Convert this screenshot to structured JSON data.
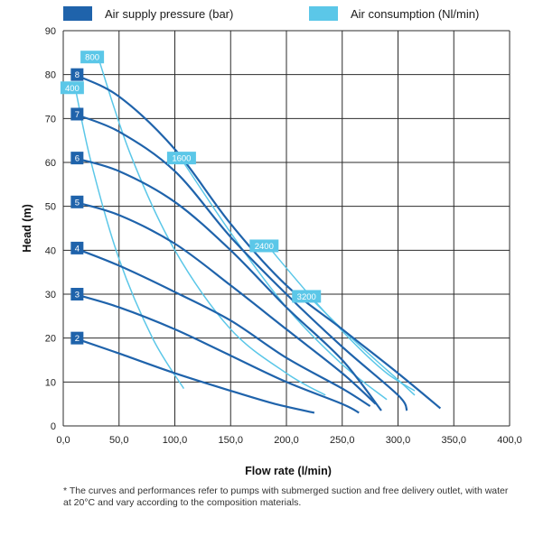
{
  "legend": {
    "pressure_label": "Air supply pressure (bar)",
    "consumption_label": "Air consumption (Nl/min)"
  },
  "colors": {
    "pressure": "#1f63ab",
    "consumption": "#5bc7e8",
    "grid": "#2b2b2b"
  },
  "footnote": "* The curves and performances refer to pumps with submerged suction and free delivery outlet, with water at 20°C and vary according to the composition materials.",
  "chart_data": {
    "type": "line",
    "xlabel": "Flow rate (l/min)",
    "ylabel": "Head (m)",
    "xlim": [
      0,
      400
    ],
    "ylim": [
      0,
      90
    ],
    "xticks": [
      "0,0",
      "50,0",
      "100,0",
      "150,0",
      "200,0",
      "250,0",
      "300,0",
      "350,0",
      "400,0"
    ],
    "yticks": [
      "0",
      "10",
      "20",
      "30",
      "40",
      "50",
      "60",
      "70",
      "80",
      "90"
    ],
    "grid": true,
    "legend_position": "top",
    "pressure_series": [
      {
        "name": "2",
        "points": [
          [
            10,
            20
          ],
          [
            50,
            16.5
          ],
          [
            100,
            12
          ],
          [
            150,
            8
          ],
          [
            190,
            5
          ],
          [
            225,
            3
          ]
        ]
      },
      {
        "name": "3",
        "points": [
          [
            10,
            30
          ],
          [
            50,
            27
          ],
          [
            100,
            22
          ],
          [
            150,
            16
          ],
          [
            200,
            10
          ],
          [
            250,
            5
          ],
          [
            265,
            3
          ]
        ]
      },
      {
        "name": "4",
        "points": [
          [
            10,
            40.5
          ],
          [
            50,
            36.5
          ],
          [
            100,
            30.5
          ],
          [
            150,
            24
          ],
          [
            200,
            15.5
          ],
          [
            250,
            8.5
          ],
          [
            275,
            4.5
          ]
        ]
      },
      {
        "name": "5",
        "points": [
          [
            10,
            51
          ],
          [
            50,
            48
          ],
          [
            100,
            41.5
          ],
          [
            150,
            32
          ],
          [
            200,
            22
          ],
          [
            250,
            12
          ],
          [
            280,
            5
          ]
        ]
      },
      {
        "name": "6",
        "points": [
          [
            10,
            61
          ],
          [
            50,
            58
          ],
          [
            100,
            51
          ],
          [
            150,
            40
          ],
          [
            200,
            27
          ],
          [
            250,
            15
          ],
          [
            285,
            3.5
          ]
        ]
      },
      {
        "name": "7",
        "points": [
          [
            10,
            71
          ],
          [
            50,
            67
          ],
          [
            100,
            58
          ],
          [
            150,
            43
          ],
          [
            200,
            30
          ],
          [
            250,
            18
          ],
          [
            300,
            7
          ],
          [
            308,
            3.5
          ]
        ]
      },
      {
        "name": "8",
        "points": [
          [
            10,
            80
          ],
          [
            50,
            75
          ],
          [
            100,
            63
          ],
          [
            150,
            46
          ],
          [
            200,
            32
          ],
          [
            250,
            22
          ],
          [
            300,
            12
          ],
          [
            338,
            4
          ]
        ]
      }
    ],
    "consumption_series": [
      {
        "name": "400",
        "label_point": [
          8,
          77
        ],
        "points": [
          [
            10,
            78
          ],
          [
            25,
            60
          ],
          [
            50,
            38
          ],
          [
            80,
            20
          ],
          [
            108,
            8.5
          ]
        ]
      },
      {
        "name": "800",
        "label_point": [
          26,
          84
        ],
        "points": [
          [
            30,
            85
          ],
          [
            60,
            62
          ],
          [
            100,
            40
          ],
          [
            150,
            22
          ],
          [
            200,
            12
          ],
          [
            235,
            7
          ]
        ]
      },
      {
        "name": "1600",
        "label_point": [
          106,
          61
        ],
        "points": [
          [
            100,
            63
          ],
          [
            150,
            44
          ],
          [
            200,
            27
          ],
          [
            250,
            14
          ],
          [
            290,
            6
          ]
        ]
      },
      {
        "name": "2400",
        "label_point": [
          180,
          41
        ],
        "points": [
          [
            180,
            42
          ],
          [
            220,
            30
          ],
          [
            260,
            19
          ],
          [
            290,
            12
          ],
          [
            315,
            8
          ]
        ]
      },
      {
        "name": "3200",
        "label_point": [
          218,
          29.5
        ],
        "points": [
          [
            218,
            30
          ],
          [
            250,
            22
          ],
          [
            280,
            15
          ],
          [
            300,
            10.5
          ],
          [
            315,
            7
          ]
        ]
      }
    ]
  }
}
